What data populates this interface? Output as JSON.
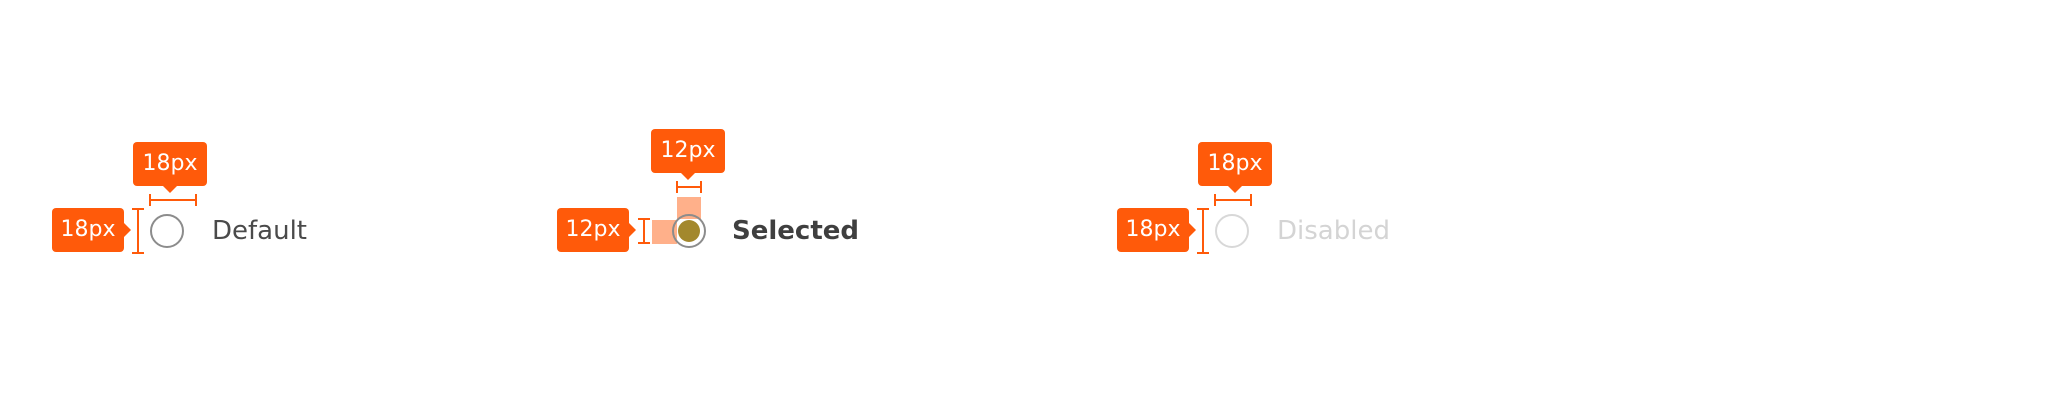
{
  "accent_color": "#ff5a0a",
  "radio_options": [
    {
      "label": "Default",
      "state": "default",
      "width_tag": "18px",
      "height_tag": "18px"
    },
    {
      "label": "Selected",
      "state": "selected",
      "width_tag": "12px",
      "height_tag": "12px"
    },
    {
      "label": "Disabled",
      "state": "disabled",
      "width_tag": "18px",
      "height_tag": "18px"
    }
  ]
}
